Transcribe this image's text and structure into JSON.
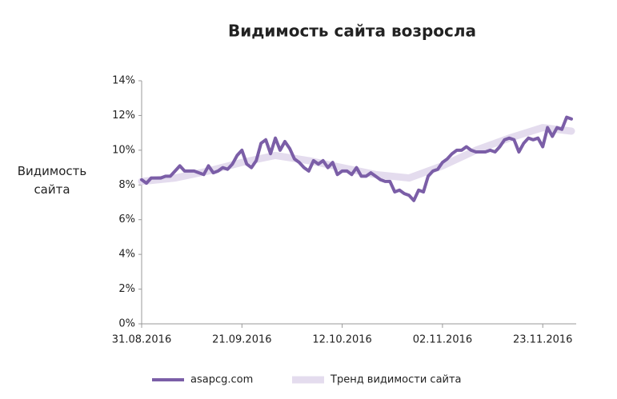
{
  "chart_data": {
    "type": "line",
    "title": "Видимость сайта возросла",
    "y_label": "Видимость сайта",
    "x": [
      "2016-08-31",
      "2016-09-01",
      "2016-09-02",
      "2016-09-03",
      "2016-09-04",
      "2016-09-05",
      "2016-09-06",
      "2016-09-07",
      "2016-09-08",
      "2016-09-09",
      "2016-09-10",
      "2016-09-11",
      "2016-09-12",
      "2016-09-13",
      "2016-09-14",
      "2016-09-15",
      "2016-09-16",
      "2016-09-17",
      "2016-09-18",
      "2016-09-19",
      "2016-09-20",
      "2016-09-21",
      "2016-09-22",
      "2016-09-23",
      "2016-09-24",
      "2016-09-25",
      "2016-09-26",
      "2016-09-27",
      "2016-09-28",
      "2016-09-29",
      "2016-09-30",
      "2016-10-01",
      "2016-10-02",
      "2016-10-03",
      "2016-10-04",
      "2016-10-05",
      "2016-10-06",
      "2016-10-07",
      "2016-10-08",
      "2016-10-09",
      "2016-10-10",
      "2016-10-11",
      "2016-10-12",
      "2016-10-13",
      "2016-10-14",
      "2016-10-15",
      "2016-10-16",
      "2016-10-17",
      "2016-10-18",
      "2016-10-19",
      "2016-10-20",
      "2016-10-21",
      "2016-10-22",
      "2016-10-23",
      "2016-10-24",
      "2016-10-25",
      "2016-10-26",
      "2016-10-27",
      "2016-10-28",
      "2016-10-29",
      "2016-10-30",
      "2016-10-31",
      "2016-11-01",
      "2016-11-02",
      "2016-11-03",
      "2016-11-04",
      "2016-11-05",
      "2016-11-06",
      "2016-11-07",
      "2016-11-08",
      "2016-11-09",
      "2016-11-10",
      "2016-11-11",
      "2016-11-12",
      "2016-11-13",
      "2016-11-14",
      "2016-11-15",
      "2016-11-16",
      "2016-11-17",
      "2016-11-18",
      "2016-11-19",
      "2016-11-20",
      "2016-11-21",
      "2016-11-22",
      "2016-11-23",
      "2016-11-24",
      "2016-11-25",
      "2016-11-26",
      "2016-11-27",
      "2016-11-28",
      "2016-11-29"
    ],
    "series": [
      {
        "name": "asapcg.com",
        "color": "#7b5ea7",
        "values": [
          8.3,
          8.1,
          8.4,
          8.4,
          8.4,
          8.5,
          8.5,
          8.8,
          9.1,
          8.8,
          8.8,
          8.8,
          8.7,
          8.6,
          9.1,
          8.7,
          8.8,
          9.0,
          8.9,
          9.2,
          9.7,
          10.0,
          9.2,
          9.0,
          9.4,
          10.4,
          10.6,
          9.8,
          10.7,
          10.0,
          10.5,
          10.1,
          9.5,
          9.3,
          9.0,
          8.8,
          9.4,
          9.2,
          9.4,
          9.0,
          9.3,
          8.6,
          8.8,
          8.8,
          8.6,
          9.0,
          8.5,
          8.5,
          8.7,
          8.5,
          8.3,
          8.2,
          8.2,
          7.6,
          7.7,
          7.5,
          7.4,
          7.1,
          7.7,
          7.6,
          8.5,
          8.8,
          8.9,
          9.3,
          9.5,
          9.8,
          10.0,
          10.0,
          10.2,
          10.0,
          9.9,
          9.9,
          9.9,
          10.0,
          9.9,
          10.2,
          10.6,
          10.7,
          10.6,
          9.9,
          10.4,
          10.7,
          10.6,
          10.7,
          10.2,
          11.3,
          10.8,
          11.3,
          11.2,
          11.9,
          11.8
        ]
      },
      {
        "name": "Тренд видимости сайта",
        "color": "#e4dcee",
        "x": [
          "2016-08-31",
          "2016-09-07",
          "2016-09-14",
          "2016-09-21",
          "2016-09-28",
          "2016-10-05",
          "2016-10-12",
          "2016-10-19",
          "2016-10-26",
          "2016-11-02",
          "2016-11-09",
          "2016-11-16",
          "2016-11-23",
          "2016-11-29"
        ],
        "values": [
          8.2,
          8.4,
          8.8,
          9.3,
          9.7,
          9.4,
          9.0,
          8.6,
          8.4,
          9.1,
          10.0,
          10.7,
          11.3,
          11.1
        ]
      }
    ],
    "xlim": [
      "2016-08-31",
      "2016-11-30"
    ],
    "xticks": [
      {
        "value": "2016-08-31",
        "label": "31.08.2016"
      },
      {
        "value": "2016-09-21",
        "label": "21.09.2016"
      },
      {
        "value": "2016-10-12",
        "label": "12.10.2016"
      },
      {
        "value": "2016-11-02",
        "label": "02.11.2016"
      },
      {
        "value": "2016-11-23",
        "label": "23.11.2016"
      }
    ],
    "ylim": [
      0,
      14
    ],
    "yticks": [
      {
        "value": 0,
        "label": "0%"
      },
      {
        "value": 2,
        "label": "2%"
      },
      {
        "value": 4,
        "label": "4%"
      },
      {
        "value": 6,
        "label": "6%"
      },
      {
        "value": 8,
        "label": "8%"
      },
      {
        "value": 10,
        "label": "10%"
      },
      {
        "value": 12,
        "label": "12%"
      },
      {
        "value": 14,
        "label": "14%"
      }
    ],
    "grid": false,
    "legend": "bottom"
  }
}
